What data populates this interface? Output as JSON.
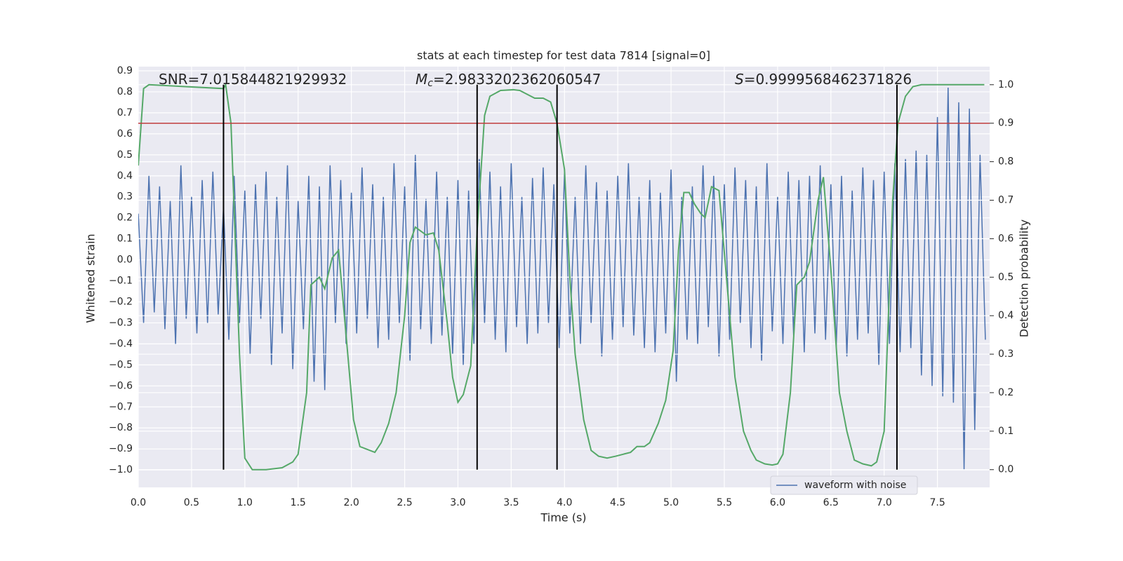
{
  "chart_data": {
    "type": "line",
    "title": "stats at each timestep for test data 7814 [signal=0]",
    "xlabel": "Time (s)",
    "ylabel": "Whitened strain",
    "y2label": "Detection probability",
    "annotations": [
      {
        "text": "SNR=7.015844821929932"
      },
      {
        "symbol": "M",
        "subscript": "c",
        "text": "=2.9833202362060547"
      },
      {
        "symbol": "S",
        "text": "=0.9999568462371826"
      }
    ],
    "xlim": [
      0,
      7.99
    ],
    "ylim": [
      -1.083,
      0.92
    ],
    "y2lim": [
      -0.046,
      1.047
    ],
    "xticks": [
      {
        "value": 0,
        "label": "0.0"
      },
      {
        "value": 0.5,
        "label": "0.5"
      },
      {
        "value": 1,
        "label": "1.0"
      },
      {
        "value": 1.5,
        "label": "1.5"
      },
      {
        "value": 2,
        "label": "2.0"
      },
      {
        "value": 2.5,
        "label": "2.5"
      },
      {
        "value": 3,
        "label": "3.0"
      },
      {
        "value": 3.5,
        "label": "3.5"
      },
      {
        "value": 4,
        "label": "4.0"
      },
      {
        "value": 4.5,
        "label": "4.5"
      },
      {
        "value": 5,
        "label": "5.0"
      },
      {
        "value": 5.5,
        "label": "5.5"
      },
      {
        "value": 6,
        "label": "6.0"
      },
      {
        "value": 6.5,
        "label": "6.5"
      },
      {
        "value": 7,
        "label": "7.0"
      },
      {
        "value": 7.5,
        "label": "7.5"
      }
    ],
    "yticks": [
      {
        "value": 0.9,
        "label": "0.9"
      },
      {
        "value": 0.8,
        "label": "0.8"
      },
      {
        "value": 0.7,
        "label": "0.7"
      },
      {
        "value": 0.6,
        "label": "0.6"
      },
      {
        "value": 0.5,
        "label": "0.5"
      },
      {
        "value": 0.4,
        "label": "0.4"
      },
      {
        "value": 0.3,
        "label": "0.3"
      },
      {
        "value": 0.2,
        "label": "0.2"
      },
      {
        "value": 0.1,
        "label": "0.1"
      },
      {
        "value": 0,
        "label": "0.0"
      },
      {
        "value": -0.1,
        "label": "−0.1"
      },
      {
        "value": -0.2,
        "label": "−0.2"
      },
      {
        "value": -0.3,
        "label": "−0.3"
      },
      {
        "value": -0.4,
        "label": "−0.4"
      },
      {
        "value": -0.5,
        "label": "−0.5"
      },
      {
        "value": -0.6,
        "label": "−0.6"
      },
      {
        "value": -0.7,
        "label": "−0.7"
      },
      {
        "value": -0.8,
        "label": "−0.8"
      },
      {
        "value": -0.9,
        "label": "−0.9"
      },
      {
        "value": -1,
        "label": "−1.0"
      }
    ],
    "y2ticks": [
      {
        "value": 0,
        "label": "0.0"
      },
      {
        "value": 0.1,
        "label": "0.1"
      },
      {
        "value": 0.2,
        "label": "0.2"
      },
      {
        "value": 0.3,
        "label": "0.3"
      },
      {
        "value": 0.4,
        "label": "0.4"
      },
      {
        "value": 0.5,
        "label": "0.5"
      },
      {
        "value": 0.6,
        "label": "0.6"
      },
      {
        "value": 0.7,
        "label": "0.7"
      },
      {
        "value": 0.8,
        "label": "0.8"
      },
      {
        "value": 0.9,
        "label": "0.9"
      },
      {
        "value": 1,
        "label": "1.0"
      }
    ],
    "grid": true,
    "legend": "lower right",
    "series": [
      {
        "name": "waveform with noise",
        "color": "#4c72b0",
        "x": [
          0,
          0.05,
          0.1,
          0.15,
          0.2,
          0.25,
          0.3,
          0.35,
          0.4,
          0.45,
          0.5,
          0.55,
          0.6,
          0.65,
          0.7,
          0.75,
          0.8,
          0.85,
          0.9,
          0.95,
          1,
          1.05,
          1.1,
          1.15,
          1.2,
          1.25,
          1.3,
          1.35,
          1.4,
          1.45,
          1.5,
          1.55,
          1.6,
          1.65,
          1.7,
          1.75,
          1.8,
          1.85,
          1.9,
          1.95,
          2,
          2.05,
          2.1,
          2.15,
          2.2,
          2.25,
          2.3,
          2.35,
          2.4,
          2.45,
          2.5,
          2.55,
          2.6,
          2.65,
          2.7,
          2.75,
          2.8,
          2.85,
          2.9,
          2.95,
          3,
          3.05,
          3.1,
          3.15,
          3.2,
          3.25,
          3.3,
          3.35,
          3.4,
          3.45,
          3.5,
          3.55,
          3.6,
          3.65,
          3.7,
          3.75,
          3.8,
          3.85,
          3.9,
          3.95,
          4,
          4.05,
          4.1,
          4.15,
          4.2,
          4.25,
          4.3,
          4.35,
          4.4,
          4.45,
          4.5,
          4.55,
          4.6,
          4.65,
          4.7,
          4.75,
          4.8,
          4.85,
          4.9,
          4.95,
          5,
          5.05,
          5.1,
          5.15,
          5.2,
          5.25,
          5.3,
          5.35,
          5.4,
          5.45,
          5.5,
          5.55,
          5.6,
          5.65,
          5.7,
          5.75,
          5.8,
          5.85,
          5.9,
          5.95,
          6,
          6.05,
          6.1,
          6.15,
          6.2,
          6.25,
          6.3,
          6.35,
          6.4,
          6.45,
          6.5,
          6.55,
          6.6,
          6.65,
          6.7,
          6.75,
          6.8,
          6.85,
          6.9,
          6.95,
          7,
          7.05,
          7.1,
          7.15,
          7.2,
          7.25,
          7.3,
          7.35,
          7.4,
          7.45,
          7.5,
          7.55,
          7.6,
          7.65,
          7.7,
          7.75,
          7.8,
          7.85,
          7.9,
          7.95
        ],
        "values": [
          0.22,
          -0.3,
          0.4,
          -0.25,
          0.35,
          -0.33,
          0.28,
          -0.4,
          0.45,
          -0.28,
          0.3,
          -0.35,
          0.38,
          -0.3,
          0.42,
          -0.26,
          0.25,
          -0.38,
          0.4,
          -0.3,
          0.33,
          -0.45,
          0.36,
          -0.28,
          0.42,
          -0.5,
          0.3,
          -0.35,
          0.45,
          -0.52,
          0.28,
          -0.33,
          0.4,
          -0.58,
          0.35,
          -0.62,
          0.45,
          -0.3,
          0.38,
          -0.4,
          0.32,
          -0.35,
          0.44,
          -0.28,
          0.36,
          -0.42,
          0.3,
          -0.38,
          0.46,
          -0.3,
          0.35,
          -0.48,
          0.5,
          -0.33,
          0.29,
          -0.4,
          0.42,
          -0.36,
          0.3,
          -0.45,
          0.38,
          -0.5,
          0.33,
          -0.4,
          0.48,
          -0.3,
          0.42,
          -0.38,
          0.35,
          -0.44,
          0.46,
          -0.32,
          0.3,
          -0.4,
          0.39,
          -0.35,
          0.44,
          -0.3,
          0.36,
          -0.42,
          0.42,
          -0.35,
          0.3,
          -0.4,
          0.45,
          -0.3,
          0.37,
          -0.46,
          0.33,
          -0.38,
          0.4,
          -0.32,
          0.46,
          -0.36,
          0.3,
          -0.42,
          0.38,
          -0.44,
          0.32,
          -0.35,
          0.43,
          -0.58,
          0.3,
          -0.38,
          0.35,
          -0.4,
          0.45,
          -0.32,
          0.4,
          -0.46,
          0.36,
          -0.38,
          0.44,
          -0.3,
          0.38,
          -0.42,
          0.35,
          -0.48,
          0.46,
          -0.34,
          0.3,
          -0.4,
          0.42,
          -0.36,
          0.38,
          -0.44,
          0.4,
          -0.35,
          0.45,
          -0.38,
          0.36,
          -0.42,
          0.4,
          -0.46,
          0.33,
          -0.38,
          0.44,
          -0.35,
          0.38,
          -0.5,
          0.42,
          -0.4,
          0.46,
          -0.44,
          0.48,
          -0.42,
          0.52,
          -0.55,
          0.5,
          -0.6,
          0.68,
          -0.65,
          0.82,
          -0.68,
          0.75,
          -1.0,
          0.72,
          -0.81,
          0.5,
          -0.38
        ]
      },
      {
        "color": "#55a868",
        "axis": "y2",
        "x": [
          0,
          0.05,
          0.1,
          0.8,
          0.82,
          0.87,
          0.95,
          1,
          1.07,
          1.2,
          1.35,
          1.45,
          1.5,
          1.58,
          1.62,
          1.7,
          1.75,
          1.82,
          1.88,
          1.95,
          2.02,
          2.08,
          2.22,
          2.28,
          2.35,
          2.42,
          2.5,
          2.55,
          2.6,
          2.7,
          2.77,
          2.82,
          2.9,
          2.95,
          3,
          3.05,
          3.12,
          3.18,
          3.25,
          3.3,
          3.4,
          3.52,
          3.58,
          3.65,
          3.72,
          3.8,
          3.87,
          3.93,
          4,
          4.05,
          4.1,
          4.18,
          4.25,
          4.32,
          4.4,
          4.48,
          4.55,
          4.62,
          4.68,
          4.75,
          4.8,
          4.88,
          4.95,
          5.02,
          5.07,
          5.12,
          5.17,
          5.22,
          5.28,
          5.32,
          5.38,
          5.45,
          5.52,
          5.6,
          5.68,
          5.75,
          5.8,
          5.88,
          5.95,
          6,
          6.05,
          6.12,
          6.18,
          6.25,
          6.3,
          6.38,
          6.43,
          6.5,
          6.58,
          6.65,
          6.72,
          6.8,
          6.88,
          6.93,
          7,
          7.08,
          7.13,
          7.2,
          7.27,
          7.35,
          7.94
        ],
        "values": [
          0.79,
          0.99,
          1.0,
          0.99,
          1.0,
          0.9,
          0.3,
          0.03,
          0.0,
          0.0,
          0.005,
          0.02,
          0.04,
          0.2,
          0.48,
          0.5,
          0.47,
          0.55,
          0.57,
          0.35,
          0.13,
          0.06,
          0.045,
          0.07,
          0.12,
          0.2,
          0.4,
          0.59,
          0.63,
          0.61,
          0.615,
          0.57,
          0.38,
          0.24,
          0.175,
          0.195,
          0.27,
          0.62,
          0.92,
          0.97,
          0.985,
          0.987,
          0.985,
          0.975,
          0.965,
          0.965,
          0.955,
          0.9,
          0.78,
          0.5,
          0.3,
          0.13,
          0.05,
          0.035,
          0.03,
          0.035,
          0.04,
          0.045,
          0.06,
          0.06,
          0.07,
          0.12,
          0.18,
          0.31,
          0.57,
          0.72,
          0.72,
          0.69,
          0.665,
          0.655,
          0.735,
          0.725,
          0.5,
          0.24,
          0.1,
          0.05,
          0.025,
          0.015,
          0.012,
          0.015,
          0.04,
          0.2,
          0.48,
          0.5,
          0.54,
          0.7,
          0.76,
          0.52,
          0.2,
          0.1,
          0.025,
          0.015,
          0.01,
          0.02,
          0.1,
          0.7,
          0.9,
          0.97,
          0.995,
          1.0,
          1.0
        ]
      }
    ],
    "hline": {
      "y": 0.9,
      "axis": "y2",
      "color": "#c03d3e"
    },
    "vlines": {
      "x": [
        0.8,
        3.18,
        3.93,
        7.12
      ],
      "ymin": 0,
      "ymax": 1,
      "axis": "y2",
      "color": "#000000"
    }
  }
}
